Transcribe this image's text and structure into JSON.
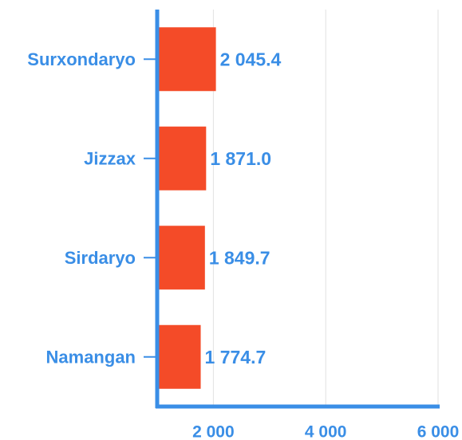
{
  "chart_data": {
    "type": "hbar",
    "categories": [
      "Surxondaryo",
      "Jizzax",
      "Sirdaryo",
      "Namangan"
    ],
    "values": [
      2045.4,
      1871.0,
      1849.7,
      1774.7
    ],
    "value_labels": [
      "2 045.4",
      "1 871.0",
      "1 849.7",
      "1 774.7"
    ],
    "color": "#f44b28",
    "xlim": [
      1000,
      6000
    ],
    "xticks": [
      {
        "value": 2000,
        "label": "2 000"
      },
      {
        "value": 4000,
        "label": "4 000"
      },
      {
        "value": 6000,
        "label": "6 000"
      }
    ],
    "grid": true
  }
}
